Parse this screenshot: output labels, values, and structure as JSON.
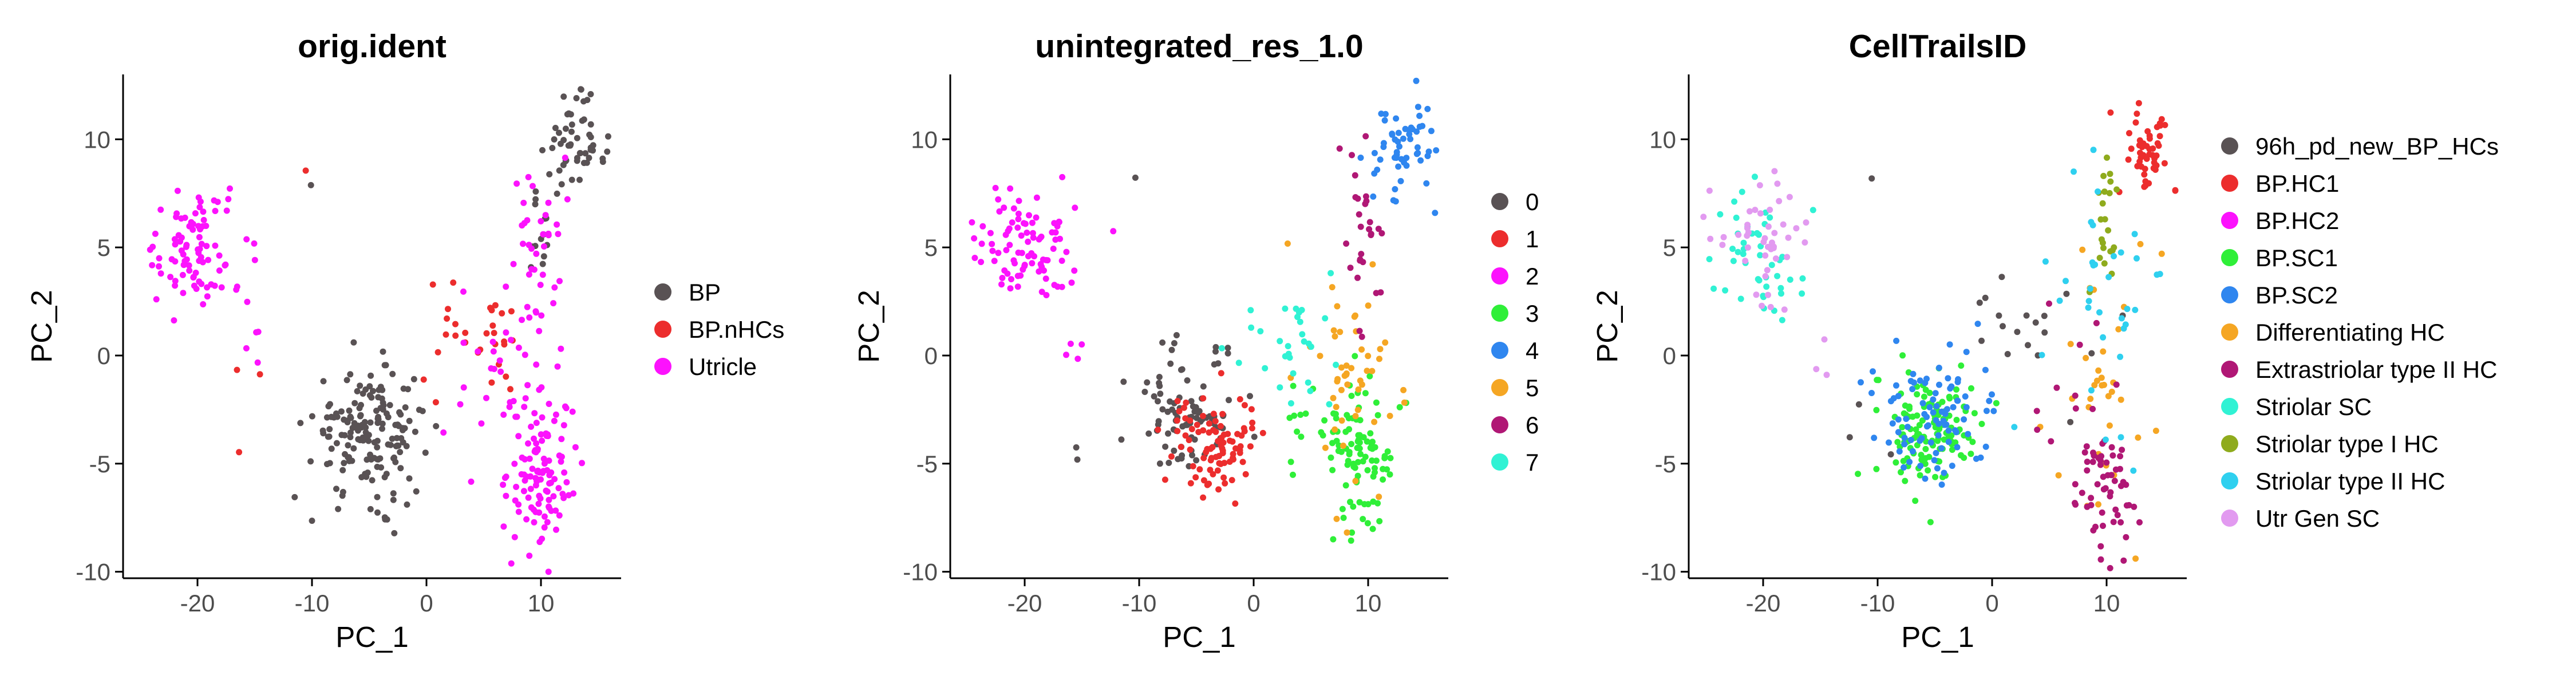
{
  "chart_data": [
    {
      "type": "scatter",
      "title": "orig.ident",
      "xlabel": "PC_1",
      "ylabel": "PC_2",
      "xlim": [
        -26.5,
        17
      ],
      "ylim": [
        -10.3,
        13
      ],
      "xticks": [
        -20,
        -10,
        0,
        10
      ],
      "yticks": [
        -10,
        -5,
        0,
        5,
        10
      ],
      "grid": false,
      "legend_position": "right",
      "series": [
        {
          "name": "BP",
          "color": "#595254",
          "clusters": [
            {
              "cx": -5,
              "cy": -3.5,
              "sx": 2.5,
              "sy": 1.5,
              "n": 170
            },
            {
              "cx": 13,
              "cy": 9.5,
              "sx": 1.3,
              "sy": 1.1,
              "n": 55
            },
            {
              "cx": 10,
              "cy": 5.5,
              "sx": 0.8,
              "sy": 1.6,
              "n": 12
            },
            {
              "cx": -10,
              "cy": 8.2,
              "sx": 0.2,
              "sy": 0.2,
              "n": 1
            }
          ]
        },
        {
          "name": "BP.nHCs",
          "color": "#ec2d2d",
          "clusters": [
            {
              "cx": 4,
              "cy": 0.5,
              "sx": 2.5,
              "sy": 1.3,
              "n": 30
            },
            {
              "cx": -10.5,
              "cy": 8.3,
              "sx": 0.2,
              "sy": 0.2,
              "n": 1
            },
            {
              "cx": -15.5,
              "cy": -2.5,
              "sx": 0.6,
              "sy": 1.5,
              "n": 3
            }
          ]
        },
        {
          "name": "Utricle",
          "color": "#fc12fd",
          "clusters": [
            {
              "cx": -20,
              "cy": 5,
              "sx": 2.3,
              "sy": 1.3,
              "n": 90
            },
            {
              "cx": 10,
              "cy": -5.5,
              "sx": 1.4,
              "sy": 1.8,
              "n": 110
            },
            {
              "cx": 9.5,
              "cy": 5,
              "sx": 1.2,
              "sy": 2.5,
              "n": 40
            },
            {
              "cx": 6.5,
              "cy": -1,
              "sx": 3,
              "sy": 2,
              "n": 30
            },
            {
              "cx": -15,
              "cy": 0.3,
              "sx": 0.8,
              "sy": 0.6,
              "n": 4
            }
          ]
        }
      ]
    },
    {
      "type": "scatter",
      "title": "unintegrated_res_1.0",
      "xlabel": "PC_1",
      "ylabel": "PC_2",
      "xlim": [
        -26.5,
        17
      ],
      "ylim": [
        -10.3,
        13
      ],
      "xticks": [
        -20,
        -10,
        0,
        10
      ],
      "yticks": [
        -10,
        -5,
        0,
        5,
        10
      ],
      "grid": false,
      "legend_position": "right",
      "series": [
        {
          "name": "0",
          "color": "#595254",
          "clusters": [
            {
              "cx": -6,
              "cy": -2.8,
              "sx": 2.2,
              "sy": 1.3,
              "n": 80
            },
            {
              "cx": -5,
              "cy": 0.3,
              "sx": 2,
              "sy": 0.4,
              "n": 10
            },
            {
              "cx": -10.5,
              "cy": 8.3,
              "sx": 0.2,
              "sy": 0.2,
              "n": 1
            },
            {
              "cx": -15.5,
              "cy": -4.5,
              "sx": 0.3,
              "sy": 0.5,
              "n": 2
            }
          ]
        },
        {
          "name": "1",
          "color": "#ec2d2d",
          "clusters": [
            {
              "cx": -3.5,
              "cy": -3.8,
              "sx": 2,
              "sy": 1.2,
              "n": 90
            }
          ]
        },
        {
          "name": "2",
          "color": "#fc12fd",
          "clusters": [
            {
              "cx": -20,
              "cy": 5,
              "sx": 2.3,
              "sy": 1.3,
              "n": 90
            },
            {
              "cx": -15,
              "cy": 0.3,
              "sx": 0.8,
              "sy": 0.6,
              "n": 4
            }
          ]
        },
        {
          "name": "3",
          "color": "#2fef38",
          "clusters": [
            {
              "cx": 9.5,
              "cy": -5,
              "sx": 1.4,
              "sy": 1.8,
              "n": 90
            },
            {
              "cx": 5,
              "cy": -3.5,
              "sx": 1.5,
              "sy": 1.2,
              "n": 15
            }
          ]
        },
        {
          "name": "4",
          "color": "#2f86ef",
          "clusters": [
            {
              "cx": 13,
              "cy": 9.7,
              "sx": 1.3,
              "sy": 1.1,
              "n": 55
            }
          ]
        },
        {
          "name": "5",
          "color": "#f5a623",
          "clusters": [
            {
              "cx": 8,
              "cy": -1,
              "sx": 2.5,
              "sy": 2.5,
              "n": 50
            }
          ]
        },
        {
          "name": "6",
          "color": "#b01775",
          "clusters": [
            {
              "cx": 9.5,
              "cy": 5.5,
              "sx": 0.8,
              "sy": 2.3,
              "n": 28
            }
          ]
        },
        {
          "name": "7",
          "color": "#30f2d4",
          "clusters": [
            {
              "cx": 4,
              "cy": 0.5,
              "sx": 2,
              "sy": 1.3,
              "n": 30
            }
          ]
        }
      ]
    },
    {
      "type": "scatter",
      "title": "CellTrailsID",
      "xlabel": "PC_1",
      "ylabel": "PC_2",
      "xlim": [
        -26.5,
        17
      ],
      "ylim": [
        -10.3,
        13
      ],
      "xticks": [
        -20,
        -10,
        0,
        10
      ],
      "yticks": [
        -10,
        -5,
        0,
        5,
        10
      ],
      "grid": false,
      "legend_position": "right",
      "series": [
        {
          "name": "96h_pd_new_BP_HCs",
          "color": "#595254",
          "clusters": [
            {
              "cx": 3,
              "cy": 1,
              "sx": 3,
              "sy": 1.5,
              "n": 18
            },
            {
              "cx": -10.5,
              "cy": 8.3,
              "sx": 0.2,
              "sy": 0.2,
              "n": 1
            },
            {
              "cx": -12,
              "cy": -2.5,
              "sx": 2,
              "sy": 2,
              "n": 3
            }
          ]
        },
        {
          "name": "BP.HC1",
          "color": "#ec2d2d",
          "clusters": [
            {
              "cx": 13.5,
              "cy": 9.5,
              "sx": 1.1,
              "sy": 1,
              "n": 50
            }
          ]
        },
        {
          "name": "BP.HC2",
          "color": "#fc12fd",
          "clusters": []
        },
        {
          "name": "BP.SC1",
          "color": "#2fef38",
          "clusters": [
            {
              "cx": -5.5,
              "cy": -3.5,
              "sx": 2,
              "sy": 1.3,
              "n": 130
            }
          ]
        },
        {
          "name": "BP.SC2",
          "color": "#2f86ef",
          "clusters": [
            {
              "cx": -4.5,
              "cy": -3,
              "sx": 2.8,
              "sy": 1.6,
              "n": 90
            }
          ]
        },
        {
          "name": "Differentiating HC",
          "color": "#f5a623",
          "clusters": [
            {
              "cx": 9,
              "cy": -2,
              "sx": 2,
              "sy": 3,
              "n": 35
            }
          ]
        },
        {
          "name": "Extrastriolar type II HC",
          "color": "#b01775",
          "clusters": [
            {
              "cx": 10,
              "cy": -6,
              "sx": 1.3,
              "sy": 1.8,
              "n": 55
            },
            {
              "cx": 7,
              "cy": -2,
              "sx": 2,
              "sy": 2,
              "n": 12
            }
          ]
        },
        {
          "name": "Striolar SC",
          "color": "#30f2d4",
          "clusters": [
            {
              "cx": -20.5,
              "cy": 4.5,
              "sx": 1.8,
              "sy": 1.5,
              "n": 45
            }
          ]
        },
        {
          "name": "Striolar type I HC",
          "color": "#8fab1d",
          "clusters": [
            {
              "cx": 10,
              "cy": 6.5,
              "sx": 0.6,
              "sy": 2,
              "n": 22
            }
          ]
        },
        {
          "name": "Striolar type II HC",
          "color": "#2fd0ef",
          "clusters": [
            {
              "cx": 10,
              "cy": 3,
              "sx": 2.5,
              "sy": 3.5,
              "n": 35
            }
          ]
        },
        {
          "name": "Utr Gen SC",
          "color": "#e29af0",
          "clusters": [
            {
              "cx": -20,
              "cy": 5.5,
              "sx": 2.3,
              "sy": 1.2,
              "n": 45
            },
            {
              "cx": -15,
              "cy": 0.3,
              "sx": 0.8,
              "sy": 0.6,
              "n": 3
            }
          ]
        }
      ]
    }
  ]
}
